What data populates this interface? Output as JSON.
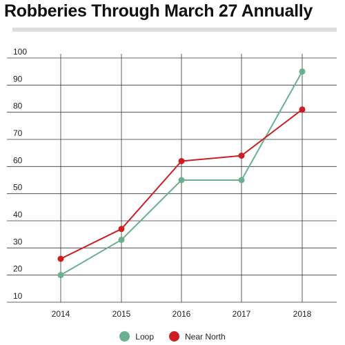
{
  "chart_data": {
    "type": "line",
    "title": "Robberies Through March 27 Annually",
    "categories": [
      "2014",
      "2015",
      "2016",
      "2017",
      "2018"
    ],
    "series": [
      {
        "name": "Loop",
        "color": "#6aaf8e",
        "values": [
          20,
          33,
          55,
          55,
          95
        ]
      },
      {
        "name": "Near North",
        "color": "#cc1f24",
        "values": [
          26,
          37,
          62,
          64,
          81
        ]
      }
    ],
    "y_ticks": [
      "100",
      "90",
      "80",
      "70",
      "60",
      "50",
      "40",
      "30",
      "20",
      "10"
    ],
    "ylim": [
      10,
      100
    ],
    "grid": true,
    "legend": "bottom-center",
    "xlabel": "",
    "ylabel": ""
  }
}
